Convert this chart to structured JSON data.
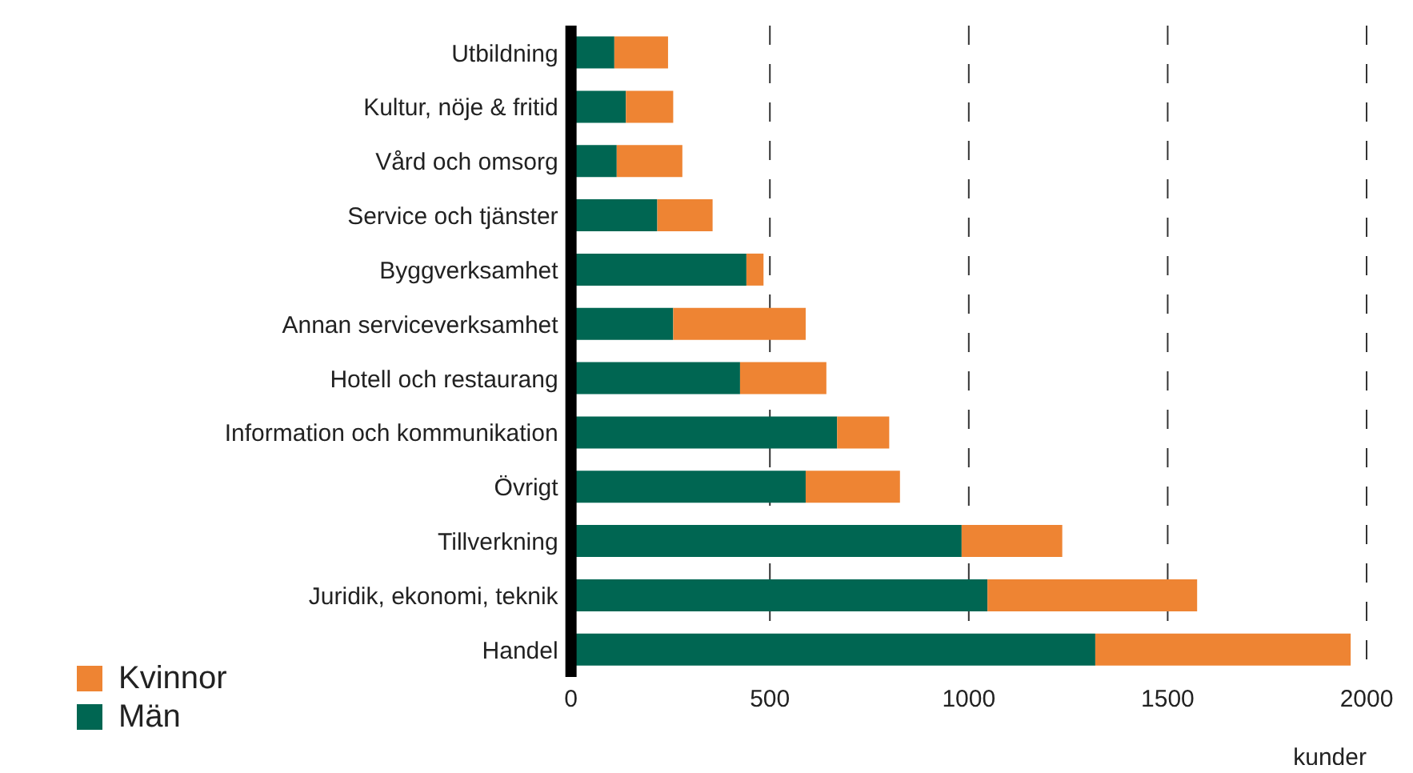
{
  "chart_data": {
    "type": "bar",
    "orientation": "horizontal",
    "stacked": true,
    "categories": [
      "Utbildning",
      "Kultur, nöje & fritid",
      "Vård och omsorg",
      "Service och tjänster",
      "Byggverksamhet",
      "Annan serviceverksamhet",
      "Hotell och restaurang",
      "Information och kommunikation",
      "Övrigt",
      "Tillverkning",
      "Juridik, ekonomi, teknik",
      "Handel"
    ],
    "series": [
      {
        "name": "Män",
        "color": "#006652",
        "values": [
          109,
          138,
          115,
          217,
          441,
          257,
          425,
          669,
          590,
          982,
          1047,
          1318
        ]
      },
      {
        "name": "Kvinnor",
        "color": "#ee8433",
        "values": [
          135,
          119,
          165,
          139,
          43,
          333,
          217,
          131,
          237,
          253,
          527,
          642
        ]
      }
    ],
    "xlabel": "kunder",
    "xlim": [
      0,
      2000
    ],
    "xticks": [
      0,
      500,
      1000,
      1500,
      2000
    ],
    "grid": "x",
    "legend": "bottom left"
  }
}
